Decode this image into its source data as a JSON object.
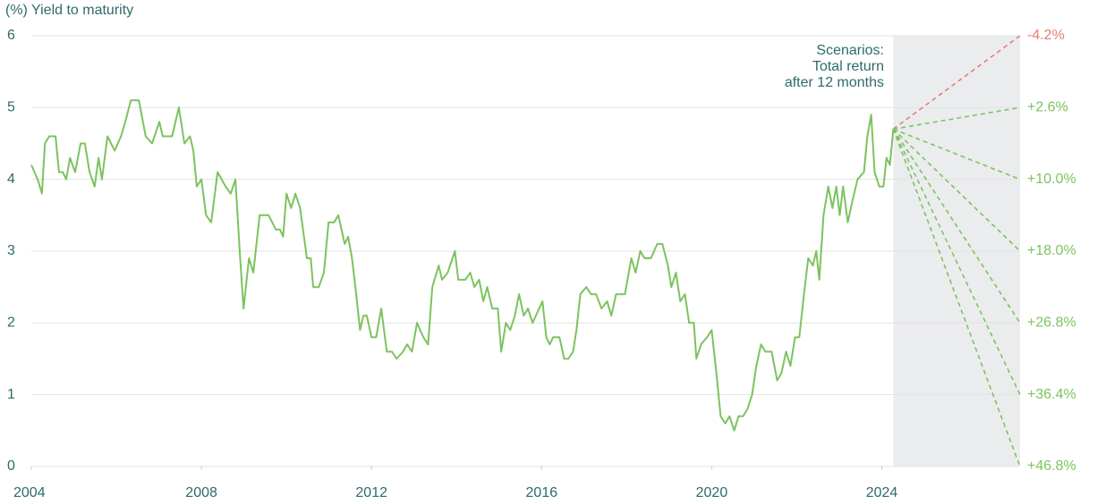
{
  "chart_data": {
    "type": "line",
    "y_label": "(%) Yield to maturity",
    "annotation": [
      "Scenarios:",
      "Total return",
      "after 12 months"
    ],
    "xlim": [
      2004,
      2027.25
    ],
    "xticks": [
      2004,
      2008,
      2012,
      2016,
      2020,
      2024
    ],
    "ylim": [
      0,
      6
    ],
    "yticks": [
      0,
      1,
      2,
      3,
      4,
      5,
      6
    ],
    "grid": true,
    "color": "#7cc35f",
    "shade_color": "#ebecee",
    "x": [
      2004.0,
      2004.15,
      2004.25,
      2004.32,
      2004.42,
      2004.57,
      2004.65,
      2004.74,
      2004.82,
      2004.91,
      2005.03,
      2005.16,
      2005.26,
      2005.37,
      2005.49,
      2005.58,
      2005.66,
      2005.79,
      2005.96,
      2006.11,
      2006.21,
      2006.34,
      2006.53,
      2006.69,
      2006.84,
      2007.01,
      2007.09,
      2007.31,
      2007.47,
      2007.6,
      2007.73,
      2007.81,
      2007.89,
      2008.0,
      2008.11,
      2008.23,
      2008.38,
      2008.57,
      2008.69,
      2008.8,
      2008.91,
      2008.99,
      2009.12,
      2009.22,
      2009.37,
      2009.58,
      2009.75,
      2009.85,
      2009.92,
      2010.0,
      2010.11,
      2010.21,
      2010.32,
      2010.48,
      2010.57,
      2010.63,
      2010.76,
      2010.88,
      2010.99,
      2011.12,
      2011.22,
      2011.37,
      2011.45,
      2011.54,
      2011.62,
      2011.73,
      2011.81,
      2011.89,
      2012.0,
      2012.11,
      2012.23,
      2012.36,
      2012.48,
      2012.59,
      2012.74,
      2012.84,
      2012.95,
      2013.07,
      2013.22,
      2013.33,
      2013.43,
      2013.58,
      2013.66,
      2013.79,
      2013.96,
      2014.04,
      2014.21,
      2014.32,
      2014.42,
      2014.53,
      2014.63,
      2014.72,
      2014.84,
      2014.97,
      2015.05,
      2015.16,
      2015.26,
      2015.37,
      2015.47,
      2015.58,
      2015.68,
      2015.79,
      2015.94,
      2016.02,
      2016.11,
      2016.19,
      2016.27,
      2016.42,
      2016.53,
      2016.63,
      2016.74,
      2016.82,
      2016.91,
      2017.05,
      2017.16,
      2017.28,
      2017.41,
      2017.54,
      2017.64,
      2017.75,
      2017.96,
      2018.11,
      2018.21,
      2018.32,
      2018.42,
      2018.57,
      2018.72,
      2018.84,
      2018.97,
      2019.05,
      2019.16,
      2019.26,
      2019.37,
      2019.47,
      2019.58,
      2019.64,
      2019.75,
      2019.89,
      2020.0,
      2020.11,
      2020.21,
      2020.32,
      2020.42,
      2020.53,
      2020.63,
      2020.74,
      2020.84,
      2020.95,
      2021.05,
      2021.16,
      2021.26,
      2021.41,
      2021.54,
      2021.64,
      2021.75,
      2021.85,
      2021.96,
      2022.06,
      2022.17,
      2022.27,
      2022.38,
      2022.46,
      2022.53,
      2022.63,
      2022.74,
      2022.84,
      2022.93,
      2023.01,
      2023.09,
      2023.2,
      2023.31,
      2023.43,
      2023.58,
      2023.66,
      2023.75,
      2023.83,
      2023.94,
      2024.04,
      2024.11,
      2024.19,
      2024.27
    ],
    "values": [
      4.2,
      4.0,
      3.8,
      4.5,
      4.6,
      4.6,
      4.1,
      4.1,
      4.0,
      4.3,
      4.1,
      4.5,
      4.5,
      4.1,
      3.9,
      4.3,
      4.0,
      4.6,
      4.4,
      4.6,
      4.8,
      5.1,
      5.1,
      4.6,
      4.5,
      4.8,
      4.6,
      4.6,
      5.0,
      4.5,
      4.6,
      4.4,
      3.9,
      4.0,
      3.5,
      3.4,
      4.1,
      3.9,
      3.8,
      4.0,
      2.9,
      2.2,
      2.9,
      2.7,
      3.5,
      3.5,
      3.3,
      3.3,
      3.2,
      3.8,
      3.6,
      3.8,
      3.6,
      2.9,
      2.9,
      2.5,
      2.5,
      2.7,
      3.4,
      3.4,
      3.5,
      3.1,
      3.2,
      2.9,
      2.5,
      1.9,
      2.1,
      2.1,
      1.8,
      1.8,
      2.2,
      1.6,
      1.6,
      1.5,
      1.6,
      1.7,
      1.6,
      2.0,
      1.8,
      1.7,
      2.5,
      2.8,
      2.6,
      2.7,
      3.0,
      2.6,
      2.6,
      2.7,
      2.5,
      2.6,
      2.3,
      2.5,
      2.2,
      2.2,
      1.6,
      2.0,
      1.9,
      2.1,
      2.4,
      2.1,
      2.2,
      2.0,
      2.2,
      2.3,
      1.8,
      1.7,
      1.8,
      1.8,
      1.5,
      1.5,
      1.6,
      1.9,
      2.4,
      2.5,
      2.4,
      2.4,
      2.2,
      2.3,
      2.1,
      2.4,
      2.4,
      2.9,
      2.7,
      3.0,
      2.9,
      2.9,
      3.1,
      3.1,
      2.8,
      2.5,
      2.7,
      2.3,
      2.4,
      2.0,
      2.0,
      1.5,
      1.7,
      1.8,
      1.9,
      1.3,
      0.7,
      0.6,
      0.7,
      0.5,
      0.7,
      0.7,
      0.8,
      1.0,
      1.4,
      1.7,
      1.6,
      1.6,
      1.2,
      1.3,
      1.6,
      1.4,
      1.8,
      1.8,
      2.4,
      2.9,
      2.8,
      3.0,
      2.6,
      3.5,
      3.9,
      3.6,
      3.9,
      3.5,
      3.9,
      3.4,
      3.7,
      4.0,
      4.1,
      4.6,
      4.9,
      4.1,
      3.9,
      3.9,
      4.3,
      4.2,
      4.7
    ],
    "scenarios": {
      "ends": [
        6,
        5,
        4,
        3,
        2,
        1,
        0
      ],
      "returns": [
        -4.2,
        2.6,
        10.0,
        18.0,
        26.8,
        36.4,
        46.8
      ],
      "return_labels": [
        "-4.2%",
        "+2.6%",
        "+10.0%",
        "+18.0%",
        "+26.8%",
        "+36.4%",
        "+46.8%"
      ],
      "colors": [
        "#e5806e",
        "#7cc35f",
        "#7cc35f",
        "#7cc35f",
        "#7cc35f",
        "#7cc35f",
        "#7cc35f"
      ]
    }
  }
}
